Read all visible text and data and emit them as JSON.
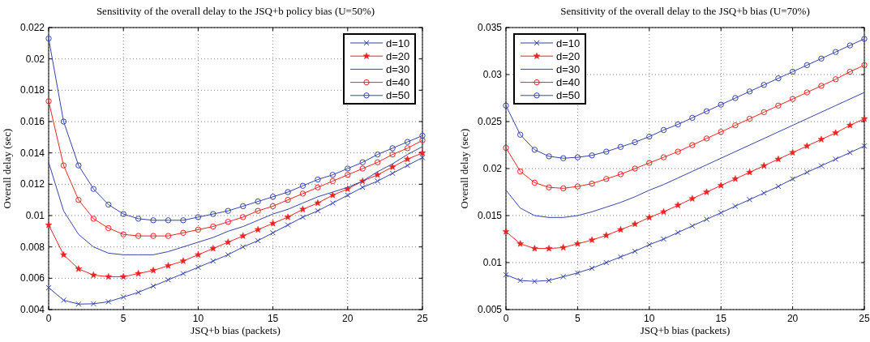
{
  "chart_data": [
    {
      "type": "line",
      "title": "Sensitivity of the overall delay to the JSQ+b policy bias (U=50%)",
      "xlabel": "JSQ+b bias (packets)",
      "ylabel": "Overall delay (sec)",
      "x": [
        0,
        1,
        2,
        3,
        4,
        5,
        6,
        7,
        8,
        9,
        10,
        11,
        12,
        13,
        14,
        15,
        16,
        17,
        18,
        19,
        20,
        21,
        22,
        23,
        24,
        25
      ],
      "xlim": [
        0,
        25
      ],
      "xticks": [
        0,
        5,
        10,
        15,
        20,
        25
      ],
      "ylim": [
        0.004,
        0.022
      ],
      "yticks": [
        0.004,
        0.006,
        0.008,
        0.01,
        0.012,
        0.014,
        0.016,
        0.018,
        0.02,
        0.022
      ],
      "grid": true,
      "legend": "top right",
      "series": [
        {
          "name": "d=10",
          "color": "#3344aa",
          "marker": "cross",
          "values": [
            0.0054,
            0.0046,
            0.00435,
            0.00437,
            0.0045,
            0.0048,
            0.0051,
            0.0055,
            0.0059,
            0.0063,
            0.0067,
            0.0071,
            0.0075,
            0.008,
            0.0084,
            0.0089,
            0.0094,
            0.0099,
            0.0103,
            0.0108,
            0.0113,
            0.0118,
            0.0122,
            0.0127,
            0.0132,
            0.0137
          ]
        },
        {
          "name": "d=20",
          "color": "#ee2222",
          "marker": "star",
          "values": [
            0.0094,
            0.0075,
            0.0066,
            0.0062,
            0.0061,
            0.0061,
            0.0063,
            0.0065,
            0.0068,
            0.0071,
            0.0075,
            0.0079,
            0.0083,
            0.0087,
            0.0091,
            0.0095,
            0.0099,
            0.0104,
            0.0108,
            0.0113,
            0.0117,
            0.0122,
            0.0126,
            0.0131,
            0.0136,
            0.014
          ]
        },
        {
          "name": "d=30",
          "color": "#3344aa",
          "marker": "none",
          "values": [
            0.0134,
            0.0103,
            0.0088,
            0.008,
            0.0076,
            0.0075,
            0.0075,
            0.0075,
            0.0077,
            0.008,
            0.0083,
            0.0086,
            0.009,
            0.0093,
            0.0097,
            0.0101,
            0.0104,
            0.0108,
            0.0112,
            0.0115,
            0.0118,
            0.0122,
            0.0128,
            0.0133,
            0.0139,
            0.0144
          ]
        },
        {
          "name": "d=40",
          "color": "#ee2222",
          "marker": "circle",
          "values": [
            0.0173,
            0.0132,
            0.011,
            0.0098,
            0.0092,
            0.0088,
            0.0087,
            0.0087,
            0.0087,
            0.0089,
            0.0091,
            0.0093,
            0.0096,
            0.0099,
            0.0103,
            0.0106,
            0.011,
            0.0114,
            0.0118,
            0.0122,
            0.0126,
            0.013,
            0.0134,
            0.0139,
            0.0143,
            0.0148
          ]
        },
        {
          "name": "d=50",
          "color": "#3344aa",
          "marker": "circle",
          "values": [
            0.0213,
            0.016,
            0.0132,
            0.0117,
            0.0107,
            0.0101,
            0.0098,
            0.0097,
            0.0097,
            0.0097,
            0.0099,
            0.0101,
            0.0103,
            0.0106,
            0.0109,
            0.0112,
            0.0115,
            0.0119,
            0.0123,
            0.0126,
            0.013,
            0.0134,
            0.0139,
            0.0143,
            0.0147,
            0.0151
          ]
        }
      ]
    },
    {
      "type": "line",
      "title": "Sensitivity of the overall delay to the JSQ+b bias (U=70%)",
      "xlabel": "JSQ+b bias (packets)",
      "ylabel": "Overall delay (sec)",
      "x": [
        0,
        1,
        2,
        3,
        4,
        5,
        6,
        7,
        8,
        9,
        10,
        11,
        12,
        13,
        14,
        15,
        16,
        17,
        18,
        19,
        20,
        21,
        22,
        23,
        24,
        25
      ],
      "xlim": [
        0,
        25
      ],
      "xticks": [
        0,
        5,
        10,
        15,
        20,
        25
      ],
      "ylim": [
        0.005,
        0.035
      ],
      "yticks": [
        0.005,
        0.01,
        0.015,
        0.02,
        0.025,
        0.03,
        0.035
      ],
      "grid": true,
      "legend": "top left",
      "series": [
        {
          "name": "d=10",
          "color": "#3344aa",
          "marker": "cross",
          "values": [
            0.0087,
            0.0081,
            0.008,
            0.0081,
            0.0085,
            0.0089,
            0.0094,
            0.01,
            0.0106,
            0.0112,
            0.0119,
            0.0125,
            0.0132,
            0.0139,
            0.0146,
            0.0153,
            0.016,
            0.0167,
            0.0174,
            0.0181,
            0.0189,
            0.0196,
            0.0203,
            0.021,
            0.0217,
            0.0224
          ]
        },
        {
          "name": "d=20",
          "color": "#ee2222",
          "marker": "star",
          "values": [
            0.0133,
            0.012,
            0.0115,
            0.0115,
            0.0116,
            0.012,
            0.0124,
            0.0129,
            0.0135,
            0.0141,
            0.0148,
            0.0154,
            0.0161,
            0.0168,
            0.0175,
            0.0182,
            0.0189,
            0.0196,
            0.0203,
            0.021,
            0.0217,
            0.0224,
            0.0231,
            0.0238,
            0.0246,
            0.0253
          ]
        },
        {
          "name": "d=30",
          "color": "#3344aa",
          "marker": "none",
          "values": [
            0.0177,
            0.0158,
            0.015,
            0.0148,
            0.0148,
            0.015,
            0.0154,
            0.0159,
            0.0164,
            0.017,
            0.0177,
            0.0183,
            0.019,
            0.0197,
            0.0204,
            0.0211,
            0.0218,
            0.0225,
            0.0232,
            0.0239,
            0.0246,
            0.0253,
            0.026,
            0.0267,
            0.0274,
            0.0281
          ]
        },
        {
          "name": "d=40",
          "color": "#ee2222",
          "marker": "circle",
          "values": [
            0.0222,
            0.0197,
            0.0185,
            0.018,
            0.0179,
            0.0181,
            0.0184,
            0.0189,
            0.0194,
            0.02,
            0.0206,
            0.0212,
            0.0218,
            0.0225,
            0.0232,
            0.0239,
            0.0246,
            0.0253,
            0.026,
            0.0267,
            0.0274,
            0.0281,
            0.0288,
            0.0295,
            0.0303,
            0.031
          ]
        },
        {
          "name": "d=50",
          "color": "#3344aa",
          "marker": "circle",
          "values": [
            0.0267,
            0.0236,
            0.022,
            0.0213,
            0.0211,
            0.0212,
            0.0214,
            0.0218,
            0.0223,
            0.0228,
            0.0234,
            0.0241,
            0.0247,
            0.0254,
            0.0261,
            0.0268,
            0.0275,
            0.0282,
            0.0289,
            0.0296,
            0.0303,
            0.031,
            0.0317,
            0.0324,
            0.0331,
            0.0338
          ]
        }
      ]
    }
  ]
}
